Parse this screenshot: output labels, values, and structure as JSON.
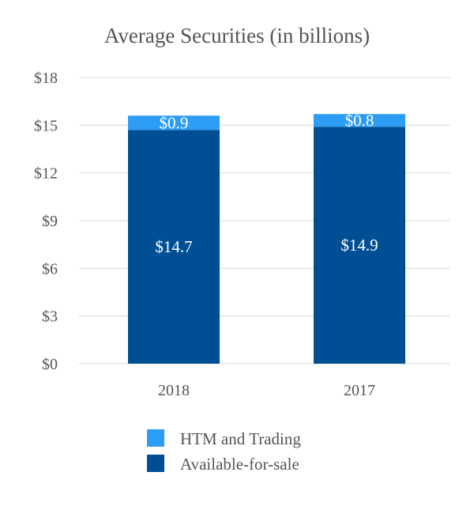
{
  "chart_data": {
    "type": "bar",
    "stacked": true,
    "title": "Average Securities (in billions)",
    "categories": [
      "2018",
      "2017"
    ],
    "series": [
      {
        "name": "Available-for-sale",
        "values": [
          14.7,
          14.9
        ],
        "labels": [
          "$14.7",
          "$14.9"
        ],
        "color": "#004f95"
      },
      {
        "name": "HTM and Trading",
        "values": [
          0.9,
          0.8
        ],
        "labels": [
          "$0.9",
          "$0.8"
        ],
        "color": "#2d9cf5"
      }
    ],
    "ylim": [
      0,
      18
    ],
    "yticks": [
      0,
      3,
      6,
      9,
      12,
      15,
      18
    ],
    "ytick_labels": [
      "$0",
      "$3",
      "$6",
      "$9",
      "$12",
      "$15",
      "$18"
    ],
    "grid": true,
    "legend": {
      "position": "bottom",
      "order": [
        "HTM and Trading",
        "Available-for-sale"
      ]
    }
  }
}
